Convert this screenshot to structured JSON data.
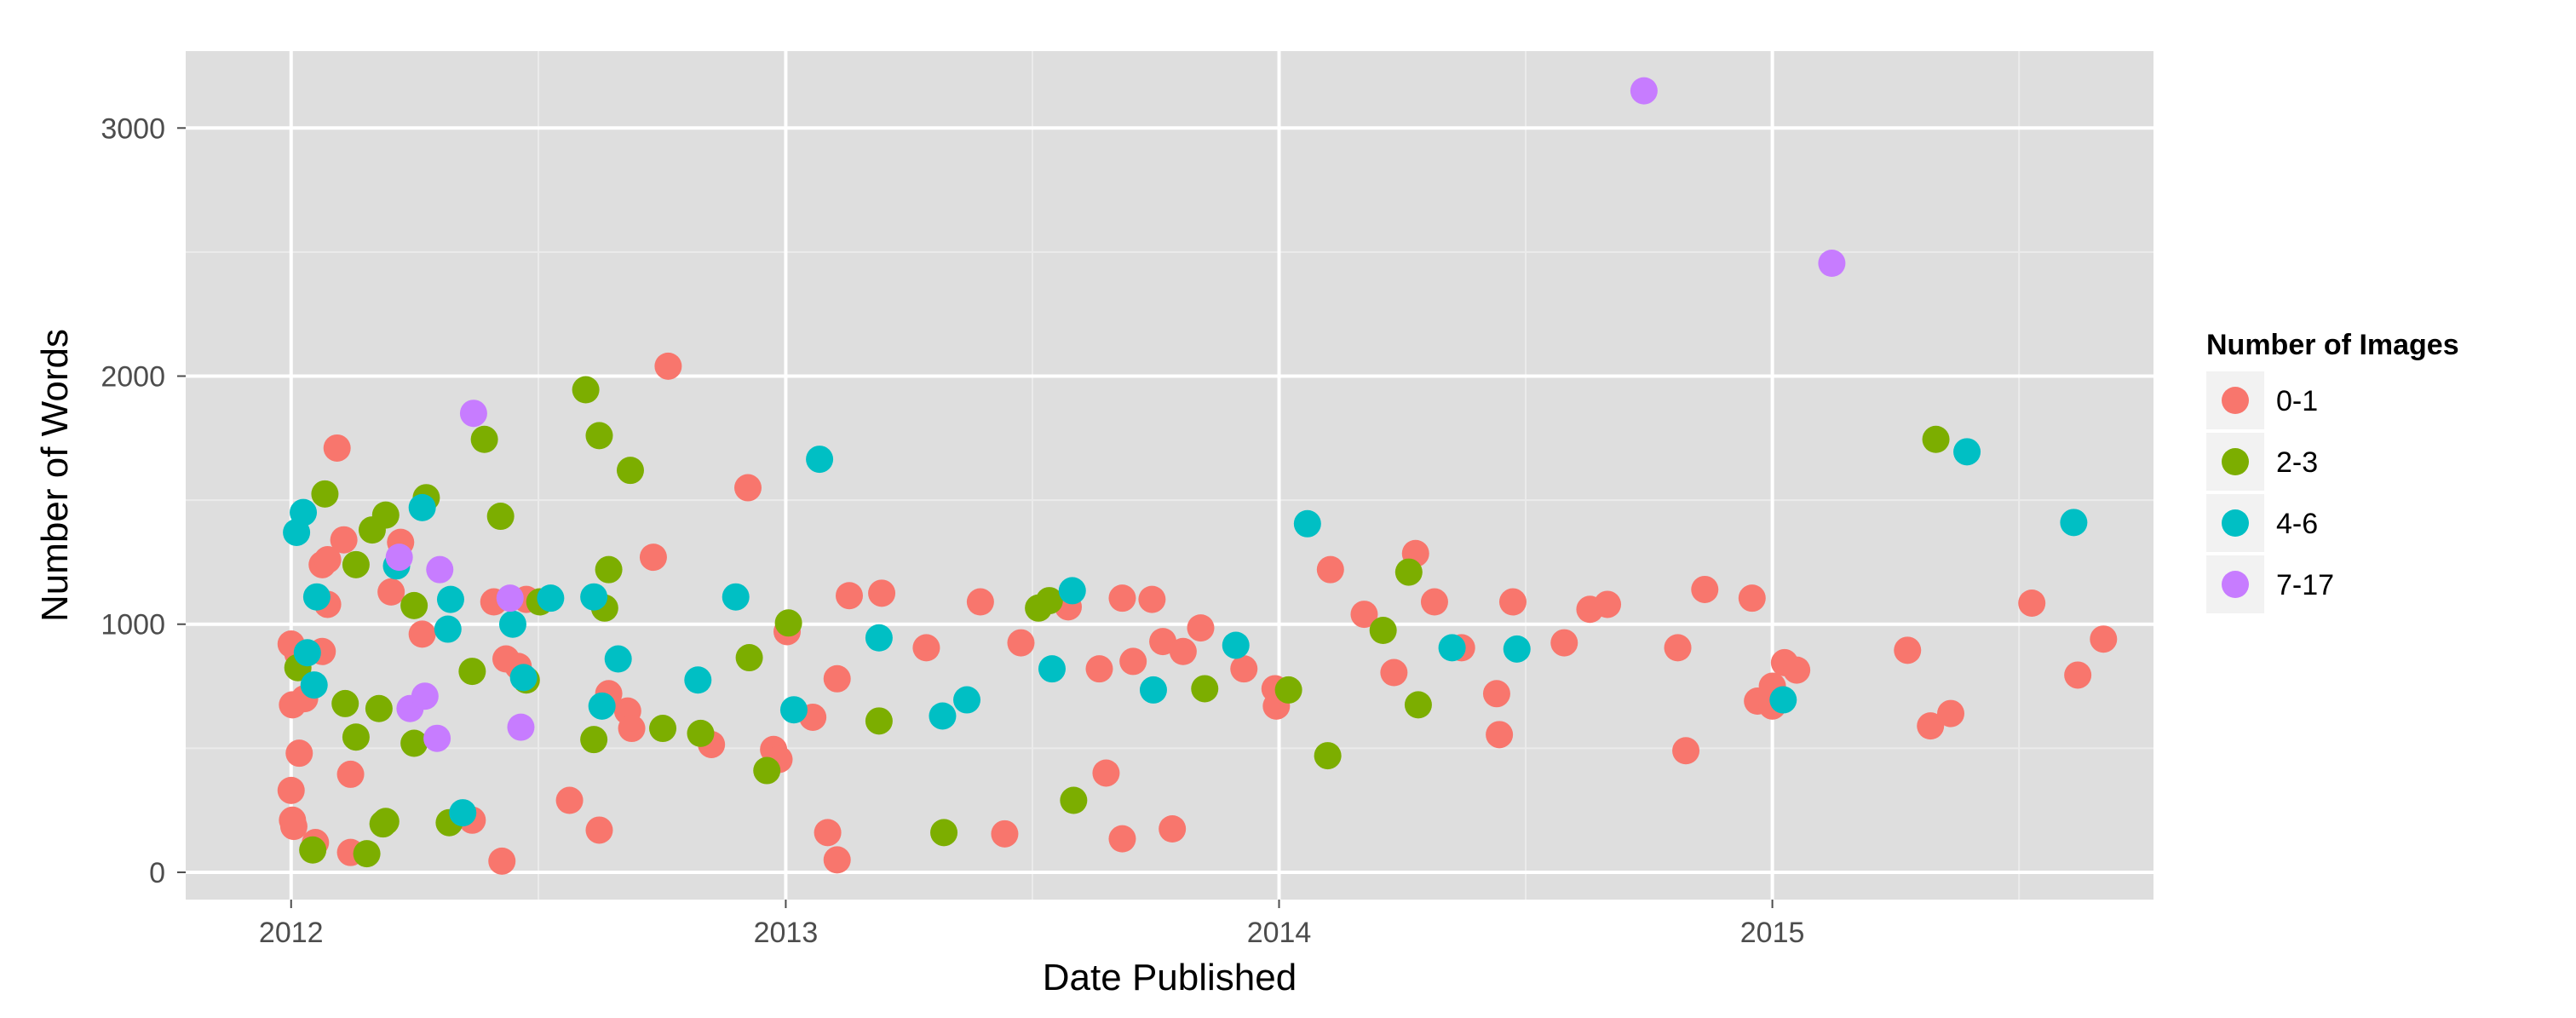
{
  "chart_data": {
    "type": "scatter",
    "title": "",
    "xlabel": "Date Published",
    "ylabel": "Number of Words",
    "x_type": "date",
    "xlim": [
      "2011-10-15",
      "2015-10-10"
    ],
    "ylim": [
      -110,
      3310
    ],
    "x_ticks": [
      {
        "value": "2012-01-01",
        "label": "2012"
      },
      {
        "value": "2013-01-01",
        "label": "2013"
      },
      {
        "value": "2014-01-01",
        "label": "2014"
      },
      {
        "value": "2015-01-01",
        "label": "2015"
      }
    ],
    "y_ticks": [
      {
        "value": 0,
        "label": "0"
      },
      {
        "value": 1000,
        "label": "1000"
      },
      {
        "value": 2000,
        "label": "2000"
      },
      {
        "value": 3000,
        "label": "3000"
      }
    ],
    "grid": true,
    "background": "#dedede",
    "legend": {
      "title": "Number of Images",
      "placement": "right",
      "entries": [
        {
          "label": "0-1",
          "color": "#f8766d"
        },
        {
          "label": "2-3",
          "color": "#7cae00"
        },
        {
          "label": "4-6",
          "color": "#00bfc4"
        },
        {
          "label": "7-17",
          "color": "#c77cff"
        }
      ]
    },
    "series": [
      {
        "name": "0-1",
        "color": "#f8766d",
        "points": [
          {
            "x": "2012-01-01",
            "y": 920
          },
          {
            "x": "2012-01-02",
            "y": 675
          },
          {
            "x": "2012-01-01",
            "y": 330
          },
          {
            "x": "2012-01-02",
            "y": 210
          },
          {
            "x": "2012-01-03",
            "y": 185
          },
          {
            "x": "2012-01-06",
            "y": 880
          },
          {
            "x": "2012-01-11",
            "y": 700
          },
          {
            "x": "2012-01-07",
            "y": 480
          },
          {
            "x": "2012-01-19",
            "y": 120
          },
          {
            "x": "2012-01-24",
            "y": 1240
          },
          {
            "x": "2012-01-24",
            "y": 890
          },
          {
            "x": "2012-01-28",
            "y": 1080
          },
          {
            "x": "2012-01-28",
            "y": 1260
          },
          {
            "x": "2012-02-04",
            "y": 1710
          },
          {
            "x": "2012-02-09",
            "y": 1340
          },
          {
            "x": "2012-02-14",
            "y": 80
          },
          {
            "x": "2012-02-14",
            "y": 395
          },
          {
            "x": "2012-03-15",
            "y": 1130
          },
          {
            "x": "2012-03-22",
            "y": 1330
          },
          {
            "x": "2012-04-07",
            "y": 960
          },
          {
            "x": "2012-05-14",
            "y": 210
          },
          {
            "x": "2012-05-30",
            "y": 1090
          },
          {
            "x": "2012-06-05",
            "y": 45
          },
          {
            "x": "2012-06-08",
            "y": 860
          },
          {
            "x": "2012-06-17",
            "y": 830
          },
          {
            "x": "2012-06-23",
            "y": 1100
          },
          {
            "x": "2012-07-25",
            "y": 290
          },
          {
            "x": "2012-08-16",
            "y": 170
          },
          {
            "x": "2012-08-23",
            "y": 720
          },
          {
            "x": "2012-09-06",
            "y": 650
          },
          {
            "x": "2012-09-09",
            "y": 580
          },
          {
            "x": "2012-09-25",
            "y": 1270
          },
          {
            "x": "2012-10-06",
            "y": 2040
          },
          {
            "x": "2012-11-07",
            "y": 515
          },
          {
            "x": "2012-12-04",
            "y": 1550
          },
          {
            "x": "2012-12-23",
            "y": 495
          },
          {
            "x": "2012-12-27",
            "y": 455
          },
          {
            "x": "2013-01-02",
            "y": 970
          },
          {
            "x": "2013-01-21",
            "y": 625
          },
          {
            "x": "2013-02-01",
            "y": 160
          },
          {
            "x": "2013-02-08",
            "y": 780
          },
          {
            "x": "2013-02-08",
            "y": 50
          },
          {
            "x": "2013-02-17",
            "y": 1115
          },
          {
            "x": "2013-03-13",
            "y": 1125
          },
          {
            "x": "2013-04-15",
            "y": 905
          },
          {
            "x": "2013-05-25",
            "y": 1090
          },
          {
            "x": "2013-06-12",
            "y": 155
          },
          {
            "x": "2013-06-24",
            "y": 925
          },
          {
            "x": "2013-07-29",
            "y": 1070
          },
          {
            "x": "2013-08-21",
            "y": 820
          },
          {
            "x": "2013-08-26",
            "y": 400
          },
          {
            "x": "2013-09-07",
            "y": 135
          },
          {
            "x": "2013-09-07",
            "y": 1105
          },
          {
            "x": "2013-09-15",
            "y": 850
          },
          {
            "x": "2013-09-29",
            "y": 1100
          },
          {
            "x": "2013-10-07",
            "y": 930
          },
          {
            "x": "2013-10-14",
            "y": 175
          },
          {
            "x": "2013-10-22",
            "y": 890
          },
          {
            "x": "2013-11-04",
            "y": 985
          },
          {
            "x": "2013-12-06",
            "y": 820
          },
          {
            "x": "2013-12-29",
            "y": 740
          },
          {
            "x": "2013-12-30",
            "y": 670
          },
          {
            "x": "2014-02-08",
            "y": 1220
          },
          {
            "x": "2014-03-05",
            "y": 1040
          },
          {
            "x": "2014-03-27",
            "y": 805
          },
          {
            "x": "2014-04-12",
            "y": 1285
          },
          {
            "x": "2014-04-26",
            "y": 1090
          },
          {
            "x": "2014-05-16",
            "y": 905
          },
          {
            "x": "2014-06-11",
            "y": 720
          },
          {
            "x": "2014-06-13",
            "y": 555
          },
          {
            "x": "2014-06-23",
            "y": 1090
          },
          {
            "x": "2014-07-31",
            "y": 925
          },
          {
            "x": "2014-08-19",
            "y": 1060
          },
          {
            "x": "2014-09-01",
            "y": 1080
          },
          {
            "x": "2014-10-23",
            "y": 905
          },
          {
            "x": "2014-10-29",
            "y": 490
          },
          {
            "x": "2014-11-12",
            "y": 1140
          },
          {
            "x": "2014-12-17",
            "y": 1105
          },
          {
            "x": "2014-12-21",
            "y": 690
          },
          {
            "x": "2015-01-01",
            "y": 670
          },
          {
            "x": "2015-01-01",
            "y": 750
          },
          {
            "x": "2015-01-10",
            "y": 845
          },
          {
            "x": "2015-01-19",
            "y": 815
          },
          {
            "x": "2015-04-11",
            "y": 895
          },
          {
            "x": "2015-04-28",
            "y": 590
          },
          {
            "x": "2015-05-13",
            "y": 640
          },
          {
            "x": "2015-07-12",
            "y": 1085
          },
          {
            "x": "2015-08-15",
            "y": 795
          },
          {
            "x": "2015-09-03",
            "y": 940
          }
        ]
      },
      {
        "name": "2-3",
        "color": "#7cae00",
        "points": [
          {
            "x": "2012-01-06",
            "y": 825
          },
          {
            "x": "2012-01-17",
            "y": 90
          },
          {
            "x": "2012-01-26",
            "y": 1525
          },
          {
            "x": "2012-02-10",
            "y": 680
          },
          {
            "x": "2012-02-18",
            "y": 545
          },
          {
            "x": "2012-02-18",
            "y": 1240
          },
          {
            "x": "2012-02-26",
            "y": 75
          },
          {
            "x": "2012-03-01",
            "y": 1380
          },
          {
            "x": "2012-03-06",
            "y": 660
          },
          {
            "x": "2012-03-09",
            "y": 195
          },
          {
            "x": "2012-03-11",
            "y": 205
          },
          {
            "x": "2012-03-11",
            "y": 1440
          },
          {
            "x": "2012-04-01",
            "y": 1075
          },
          {
            "x": "2012-04-01",
            "y": 520
          },
          {
            "x": "2012-04-10",
            "y": 1510
          },
          {
            "x": "2012-04-27",
            "y": 200
          },
          {
            "x": "2012-05-14",
            "y": 810
          },
          {
            "x": "2012-05-23",
            "y": 1745
          },
          {
            "x": "2012-06-04",
            "y": 1435
          },
          {
            "x": "2012-06-23",
            "y": 775
          },
          {
            "x": "2012-07-03",
            "y": 1090
          },
          {
            "x": "2012-08-06",
            "y": 1945
          },
          {
            "x": "2012-08-12",
            "y": 535
          },
          {
            "x": "2012-08-16",
            "y": 1760
          },
          {
            "x": "2012-08-20",
            "y": 1065
          },
          {
            "x": "2012-08-23",
            "y": 1220
          },
          {
            "x": "2012-09-08",
            "y": 1620
          },
          {
            "x": "2012-10-02",
            "y": 580
          },
          {
            "x": "2012-10-30",
            "y": 560
          },
          {
            "x": "2012-12-05",
            "y": 865
          },
          {
            "x": "2012-12-18",
            "y": 410
          },
          {
            "x": "2013-01-03",
            "y": 1005
          },
          {
            "x": "2013-03-11",
            "y": 610
          },
          {
            "x": "2013-04-28",
            "y": 160
          },
          {
            "x": "2013-07-07",
            "y": 1065
          },
          {
            "x": "2013-07-15",
            "y": 1095
          },
          {
            "x": "2013-08-02",
            "y": 290
          },
          {
            "x": "2013-11-07",
            "y": 740
          },
          {
            "x": "2014-01-08",
            "y": 735
          },
          {
            "x": "2014-02-06",
            "y": 470
          },
          {
            "x": "2014-03-19",
            "y": 975
          },
          {
            "x": "2014-04-07",
            "y": 1210
          },
          {
            "x": "2014-04-14",
            "y": 675
          },
          {
            "x": "2015-05-02",
            "y": 1745
          }
        ]
      },
      {
        "name": "4-6",
        "color": "#00bfc4",
        "points": [
          {
            "x": "2012-01-05",
            "y": 1370
          },
          {
            "x": "2012-01-10",
            "y": 1450
          },
          {
            "x": "2012-01-13",
            "y": 885
          },
          {
            "x": "2012-01-18",
            "y": 755
          },
          {
            "x": "2012-01-20",
            "y": 1110
          },
          {
            "x": "2012-03-19",
            "y": 1235
          },
          {
            "x": "2012-04-07",
            "y": 1470
          },
          {
            "x": "2012-04-26",
            "y": 980
          },
          {
            "x": "2012-04-28",
            "y": 1100
          },
          {
            "x": "2012-05-07",
            "y": 240
          },
          {
            "x": "2012-06-13",
            "y": 1000
          },
          {
            "x": "2012-06-21",
            "y": 785
          },
          {
            "x": "2012-07-11",
            "y": 1105
          },
          {
            "x": "2012-08-12",
            "y": 1110
          },
          {
            "x": "2012-08-18",
            "y": 670
          },
          {
            "x": "2012-08-30",
            "y": 860
          },
          {
            "x": "2012-10-28",
            "y": 775
          },
          {
            "x": "2012-11-25",
            "y": 1110
          },
          {
            "x": "2013-01-07",
            "y": 655
          },
          {
            "x": "2013-01-26",
            "y": 1665
          },
          {
            "x": "2013-03-11",
            "y": 945
          },
          {
            "x": "2013-04-27",
            "y": 630
          },
          {
            "x": "2013-05-15",
            "y": 695
          },
          {
            "x": "2013-07-17",
            "y": 820
          },
          {
            "x": "2013-08-01",
            "y": 1135
          },
          {
            "x": "2013-09-30",
            "y": 735
          },
          {
            "x": "2013-11-30",
            "y": 915
          },
          {
            "x": "2014-01-22",
            "y": 1405
          },
          {
            "x": "2014-05-09",
            "y": 905
          },
          {
            "x": "2014-06-26",
            "y": 900
          },
          {
            "x": "2015-01-09",
            "y": 695
          },
          {
            "x": "2015-05-25",
            "y": 1695
          },
          {
            "x": "2015-08-12",
            "y": 1410
          }
        ]
      },
      {
        "name": "7-17",
        "color": "#c77cff",
        "points": [
          {
            "x": "2012-03-21",
            "y": 1270
          },
          {
            "x": "2012-03-29",
            "y": 660
          },
          {
            "x": "2012-04-09",
            "y": 710
          },
          {
            "x": "2012-04-18",
            "y": 540
          },
          {
            "x": "2012-04-20",
            "y": 1220
          },
          {
            "x": "2012-05-15",
            "y": 1850
          },
          {
            "x": "2012-06-11",
            "y": 1105
          },
          {
            "x": "2012-06-19",
            "y": 585
          },
          {
            "x": "2014-09-28",
            "y": 3150
          },
          {
            "x": "2015-02-14",
            "y": 2455
          }
        ]
      }
    ]
  }
}
